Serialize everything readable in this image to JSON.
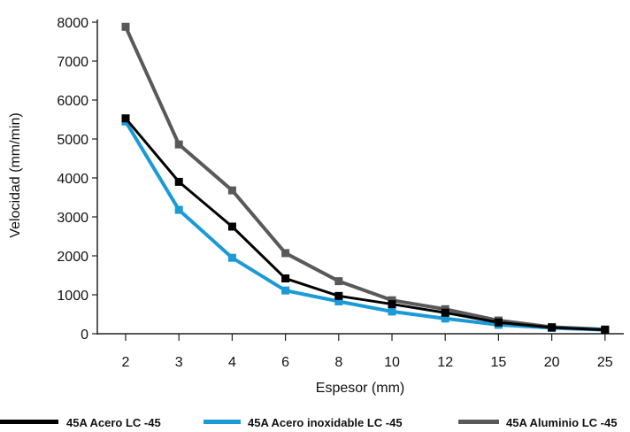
{
  "chart_data": {
    "type": "line",
    "title": "",
    "xlabel": "Espesor (mm)",
    "ylabel": "Velocidad (mm/min)",
    "categories": [
      "2",
      "3",
      "4",
      "6",
      "8",
      "10",
      "12",
      "15",
      "20",
      "25"
    ],
    "ylim": [
      0,
      8000
    ],
    "yticks": [
      "0",
      "1000",
      "2000",
      "3000",
      "4000",
      "5000",
      "6000",
      "7000",
      "8000"
    ],
    "grid": false,
    "legend_position": "bottom",
    "series": [
      {
        "name": "45A Acero LC -45",
        "color": "#000000",
        "values": [
          5530,
          3900,
          2750,
          1420,
          970,
          760,
          540,
          290,
          160,
          100
        ]
      },
      {
        "name": "45A Acero inoxidable LC -45",
        "color": "#1a9ad6",
        "values": [
          5450,
          3180,
          1950,
          1110,
          830,
          570,
          390,
          230,
          150,
          100
        ]
      },
      {
        "name": "45A Aluminio LC -45",
        "color": "#595959",
        "values": [
          7880,
          4860,
          3680,
          2070,
          1350,
          860,
          630,
          340,
          170,
          110
        ]
      }
    ]
  }
}
